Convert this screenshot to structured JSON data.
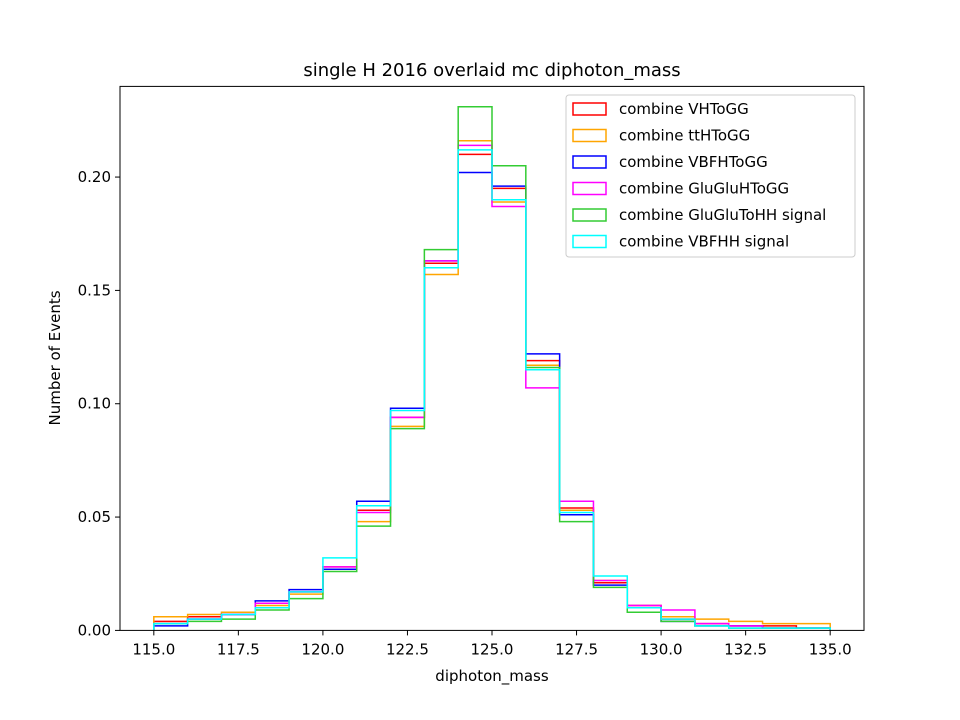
{
  "chart_data": {
    "type": "step-histogram",
    "title": "single H 2016 overlaid mc diphoton_mass",
    "xlabel": "diphoton_mass",
    "ylabel": "Number of Events",
    "xlim": [
      114.0,
      136.0
    ],
    "ylim": [
      0.0,
      0.24
    ],
    "xticks": [
      "115.0",
      "117.5",
      "120.0",
      "122.5",
      "125.0",
      "127.5",
      "130.0",
      "132.5",
      "135.0"
    ],
    "xtick_values": [
      115.0,
      117.5,
      120.0,
      122.5,
      125.0,
      127.5,
      130.0,
      132.5,
      135.0
    ],
    "yticks": [
      "0.00",
      "0.05",
      "0.10",
      "0.15",
      "0.20"
    ],
    "ytick_values": [
      0.0,
      0.05,
      0.1,
      0.15,
      0.2
    ],
    "grid": false,
    "legend_position": "top-right",
    "bin_edges": [
      115,
      116,
      117,
      118,
      119,
      120,
      121,
      122,
      123,
      124,
      125,
      126,
      127,
      128,
      129,
      130,
      131,
      132,
      133,
      134,
      135
    ],
    "series": [
      {
        "name": "combine VHToGG",
        "color": "#ff0000",
        "values": [
          0.004,
          0.006,
          0.007,
          0.012,
          0.017,
          0.028,
          0.053,
          0.094,
          0.162,
          0.21,
          0.195,
          0.119,
          0.054,
          0.021,
          0.011,
          0.005,
          0.003,
          0.002,
          0.002,
          0.001
        ]
      },
      {
        "name": "combine ttHToGG",
        "color": "#ffa500",
        "values": [
          0.006,
          0.007,
          0.008,
          0.011,
          0.016,
          0.027,
          0.048,
          0.09,
          0.157,
          0.216,
          0.189,
          0.117,
          0.053,
          0.022,
          0.01,
          0.006,
          0.005,
          0.004,
          0.003,
          0.003
        ]
      },
      {
        "name": "combine VBFHToGG",
        "color": "#0000ff",
        "values": [
          0.002,
          0.005,
          0.007,
          0.013,
          0.018,
          0.027,
          0.057,
          0.098,
          0.163,
          0.202,
          0.196,
          0.122,
          0.051,
          0.02,
          0.01,
          0.004,
          0.002,
          0.002,
          0.001,
          0.001
        ]
      },
      {
        "name": "combine GluGluHToGG",
        "color": "#ff00ff",
        "values": [
          0.003,
          0.005,
          0.007,
          0.012,
          0.017,
          0.028,
          0.052,
          0.094,
          0.163,
          0.214,
          0.187,
          0.107,
          0.057,
          0.022,
          0.011,
          0.009,
          0.003,
          0.002,
          0.001,
          0.001
        ]
      },
      {
        "name": "combine GluGluToHH signal",
        "color": "#33cc33",
        "values": [
          0.003,
          0.004,
          0.005,
          0.009,
          0.014,
          0.026,
          0.046,
          0.089,
          0.168,
          0.231,
          0.205,
          0.116,
          0.048,
          0.019,
          0.008,
          0.004,
          0.002,
          0.001,
          0.001,
          0.001
        ]
      },
      {
        "name": "combine VBFHH signal",
        "color": "#00ffff",
        "values": [
          0.003,
          0.005,
          0.007,
          0.01,
          0.017,
          0.032,
          0.055,
          0.097,
          0.16,
          0.212,
          0.19,
          0.115,
          0.052,
          0.024,
          0.01,
          0.005,
          0.002,
          0.001,
          0.001,
          0.001
        ]
      }
    ]
  }
}
